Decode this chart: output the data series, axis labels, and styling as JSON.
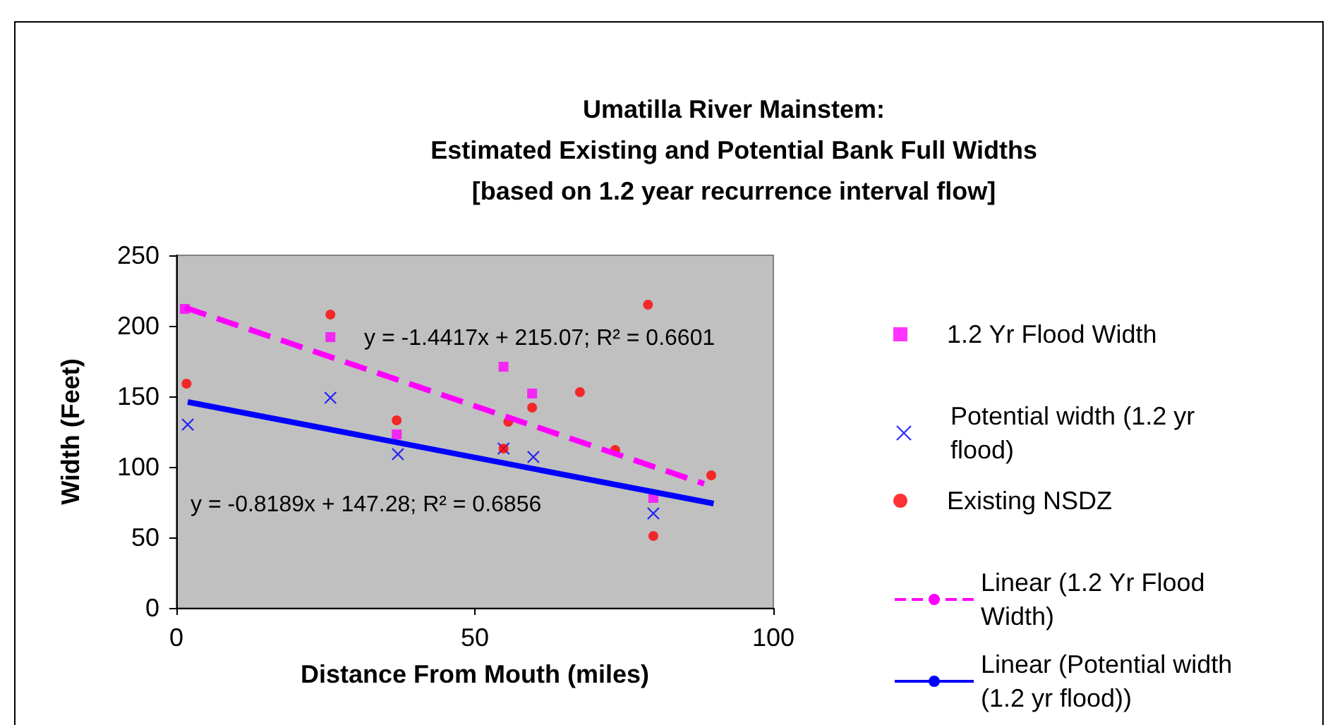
{
  "chart_data": {
    "type": "scatter",
    "title": "Umatilla River Mainstem:\nEstimated Existing and Potential Bank Full Widths\n[based on 1.2 year recurrence interval flow]",
    "xlabel": "Distance From Mouth (miles)",
    "ylabel": "Width (Feet)",
    "xlim": [
      0,
      100
    ],
    "xticks": [
      0,
      50,
      100
    ],
    "ylim": [
      0,
      250
    ],
    "yticks": [
      0,
      50,
      100,
      150,
      200,
      250
    ],
    "grid": false,
    "legend": "right",
    "series": [
      {
        "name": "1.2 Yr Flood Width",
        "type": "scatter",
        "marker": "square",
        "color": "#ff00ff",
        "x": [
          1.4,
          25.8,
          36.9,
          54.8,
          59.6,
          79.9
        ],
        "values": [
          212,
          192,
          123,
          171,
          152,
          78
        ]
      },
      {
        "name": "Potential width (1.2 yr flood)",
        "type": "scatter",
        "marker": "cross",
        "color": "#0000ff",
        "x": [
          1.9,
          25.8,
          37.1,
          54.8,
          59.8,
          79.9
        ],
        "values": [
          130,
          149,
          109,
          113,
          107,
          67
        ]
      },
      {
        "name": "Existing NSDZ",
        "type": "scatter",
        "marker": "circle",
        "color": "#ff0000",
        "x": [
          1.7,
          25.8,
          36.9,
          55.6,
          54.8,
          59.6,
          67.6,
          79,
          73.5,
          79.9,
          89.6
        ],
        "values": [
          159,
          208,
          133,
          132,
          113,
          142,
          153,
          215,
          112,
          51,
          94
        ]
      },
      {
        "name": "Linear (1.2 Yr Flood Width)",
        "type": "line",
        "marker": "none",
        "line_style": "dashed",
        "color": "#ff00ff",
        "x": [
          1.4,
          88.4
        ],
        "values": [
          213,
          88
        ]
      },
      {
        "name": "Linear (Potential width (1.2 yr flood))",
        "type": "line",
        "marker": "none",
        "line_style": "solid",
        "color": "#0000ff",
        "x": [
          1.9,
          90
        ],
        "values": [
          146,
          74
        ]
      }
    ],
    "annotations": [
      "y = -1.4417x + 215.07; R² = 0.6601",
      "y = -0.8189x + 147.28; R² = 0.6856"
    ]
  }
}
